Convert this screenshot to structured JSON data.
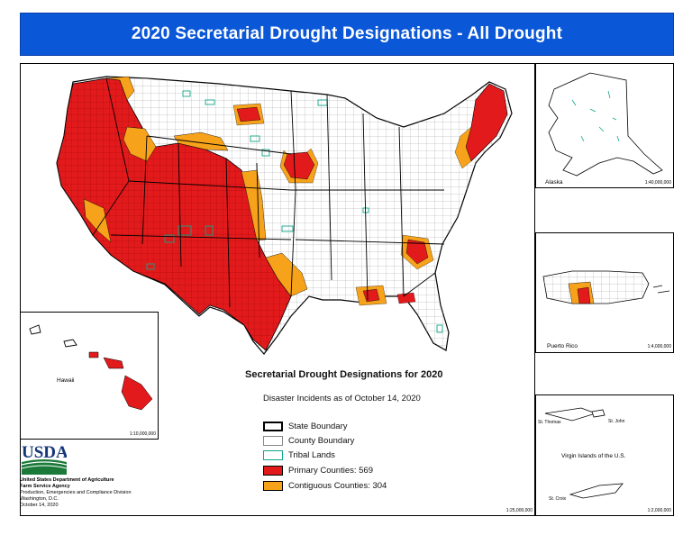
{
  "title": "2020 Secretarial Drought Designations - All Drought",
  "legend": {
    "title": "Secretarial Drought Designations for 2020",
    "subtitle": "Disaster Incidents as of October 14, 2020",
    "items": [
      {
        "label": "State Boundary",
        "fill": "#ffffff",
        "stroke": "#000000",
        "stroke_width": "bold"
      },
      {
        "label": "County Boundary",
        "fill": "#ffffff",
        "stroke": "#888888",
        "stroke_width": "thin"
      },
      {
        "label": "Tribal  Lands",
        "fill": "#ffffff",
        "stroke": "#11a58a",
        "stroke_width": "thin"
      },
      {
        "label": "Primary Counties: 569",
        "fill": "#e31a1c",
        "stroke": "#000000",
        "stroke_width": "thin"
      },
      {
        "label": "Contiguous Counties: 304",
        "fill": "#f7a21b",
        "stroke": "#000000",
        "stroke_width": "thin"
      }
    ]
  },
  "insets": {
    "alaska": {
      "label": "Alaska",
      "scale": "1:40,000,000"
    },
    "hawaii": {
      "label": "Hawaii",
      "scale": "1:10,000,000"
    },
    "puerto_rico": {
      "label": "Puerto Rico",
      "scale": "1:4,000,000"
    },
    "virgin_islands": {
      "label": "Virgin Islands of the U.S.",
      "scale": "1:2,000,000",
      "st_thomas": "St. Thomas",
      "st_john": "St. John",
      "st_croix": "St. Croix"
    }
  },
  "main_scale": "1:25,000,000",
  "agency": {
    "logo_text": "USDA",
    "line1": "United States Department of Agriculture",
    "line2": "Farm Service Agency",
    "line3": "Production, Emergencies and Compliance Division",
    "line4": "Washington, D.C.",
    "date": "October 14, 2020"
  },
  "colors": {
    "banner": "#0a57d8",
    "primary": "#e31a1c",
    "contiguous": "#f7a21b",
    "tribal": "#11a58a"
  }
}
